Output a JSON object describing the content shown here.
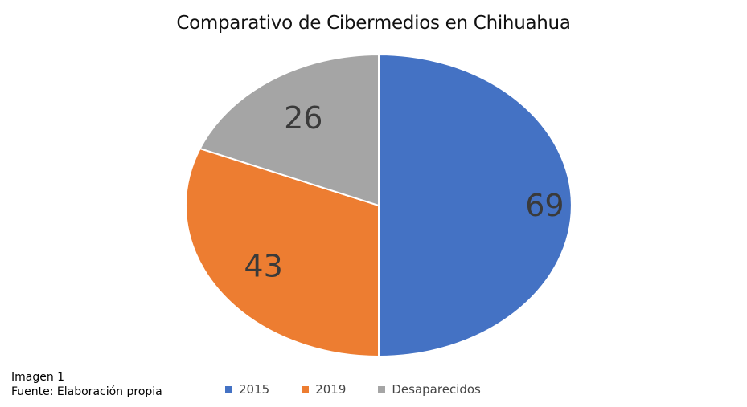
{
  "chart_data": {
    "type": "pie",
    "title": "Comparativo de Cibermedios en Chihuahua",
    "categories": [
      "2015",
      "2019",
      "Desaparecidos"
    ],
    "values": [
      69,
      43,
      26
    ],
    "colors": [
      "#4472c4",
      "#ed7d31",
      "#a5a5a5"
    ],
    "legend_position": "bottom",
    "data_labels": [
      "69",
      "43",
      "26"
    ]
  },
  "caption": {
    "line1": "Imagen 1",
    "line2": "Fuente: Elaboración propia"
  }
}
